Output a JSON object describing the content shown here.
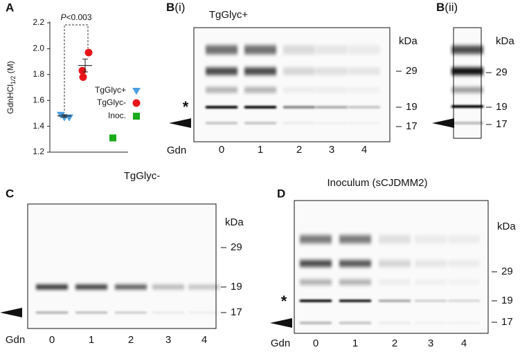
{
  "panel_labels": {
    "a": "A",
    "b_i": "B",
    "b_i_sub": "(i)",
    "b_ii": "B",
    "b_ii_sub": "(ii)",
    "c": "C",
    "d": "D"
  },
  "chart_data": {
    "type": "scatter",
    "ylabel": {
      "main": "GdnHCl",
      "sub": "1/2",
      "unit": " (M)"
    },
    "annotation_symbol": "P",
    "annotation_value": "<0.003",
    "ylim": [
      1.2,
      2.2
    ],
    "yticks": [
      1.2,
      1.4,
      1.6,
      1.8,
      {
        "value": 2,
        "label": "2.0"
      },
      2.2
    ],
    "series": [
      {
        "name": "TgGlyc+",
        "color": "#4a9ede",
        "marker": "triangle",
        "values": [
          1.49,
          1.47,
          1.47
        ],
        "mean": 1.48,
        "error": 0.01
      },
      {
        "name": "TgGlyc-",
        "color": "#e8161b",
        "marker": "circle",
        "values": [
          1.97,
          1.83,
          1.78
        ],
        "mean": 1.87,
        "error": 0.05
      },
      {
        "name": "Inoc.",
        "color": "#1aab1a",
        "marker": "square",
        "values": [
          1.31
        ]
      }
    ]
  },
  "blots": [
    {
      "title": "TgGlyc+",
      "unit": "kDa",
      "markers": [
        "29",
        "19",
        "17"
      ],
      "asterisk": "*",
      "lane_axis": "Gdn",
      "lanes": [
        "0",
        "1",
        "2",
        "3",
        "4"
      ]
    },
    {
      "unit": "kDa",
      "markers": [
        "29",
        "19",
        "17"
      ]
    },
    {
      "title": "TgGlyc-",
      "unit": "kDa",
      "markers": [
        "29",
        "19",
        "17"
      ],
      "lane_axis": "Gdn",
      "lanes": [
        "0",
        "1",
        "2",
        "3",
        "4"
      ]
    },
    {
      "title": "Inoculum (sCJDMM2)",
      "unit": "kDa",
      "markers": [
        "29",
        "19",
        "17"
      ],
      "asterisk": "*",
      "lane_axis": "Gdn",
      "lanes": [
        "0",
        "1",
        "2",
        "3",
        "4"
      ]
    }
  ]
}
